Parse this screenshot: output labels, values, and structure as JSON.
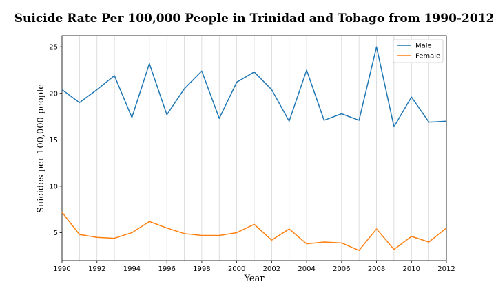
{
  "chart_data": {
    "type": "line",
    "title": "Suicide Rate Per 100,000 People in Trinidad and Tobago from 1990-2012",
    "xlabel": "Year",
    "ylabel": "Suicides per 100,000 people",
    "xlim": [
      1990,
      2012
    ],
    "ylim": [
      2.0,
      26.2
    ],
    "x_ticks": [
      1990,
      1992,
      1994,
      1996,
      1998,
      2000,
      2002,
      2004,
      2006,
      2008,
      2010,
      2012
    ],
    "y_ticks": [
      5,
      10,
      15,
      20,
      25
    ],
    "grid": "vertical",
    "legend_position": "top-right",
    "x": [
      1990,
      1991,
      1992,
      1993,
      1994,
      1995,
      1996,
      1997,
      1998,
      1999,
      2000,
      2001,
      2002,
      2003,
      2004,
      2005,
      2006,
      2007,
      2008,
      2009,
      2010,
      2011,
      2012
    ],
    "series": [
      {
        "name": "Male",
        "color": "#1f77b4",
        "values": [
          20.4,
          19.0,
          20.4,
          21.9,
          17.4,
          23.2,
          17.7,
          20.5,
          22.4,
          17.3,
          21.2,
          22.3,
          20.4,
          17.0,
          22.5,
          17.1,
          17.8,
          17.1,
          25.0,
          16.4,
          19.6,
          16.9,
          17.0
        ]
      },
      {
        "name": "Female",
        "color": "#ff7f0e",
        "values": [
          7.2,
          4.8,
          4.5,
          4.4,
          5.0,
          6.2,
          5.5,
          4.9,
          4.7,
          4.7,
          5.0,
          5.9,
          4.2,
          5.4,
          3.8,
          4.0,
          3.9,
          3.1,
          5.4,
          3.2,
          4.6,
          4.0,
          5.5
        ]
      }
    ]
  }
}
